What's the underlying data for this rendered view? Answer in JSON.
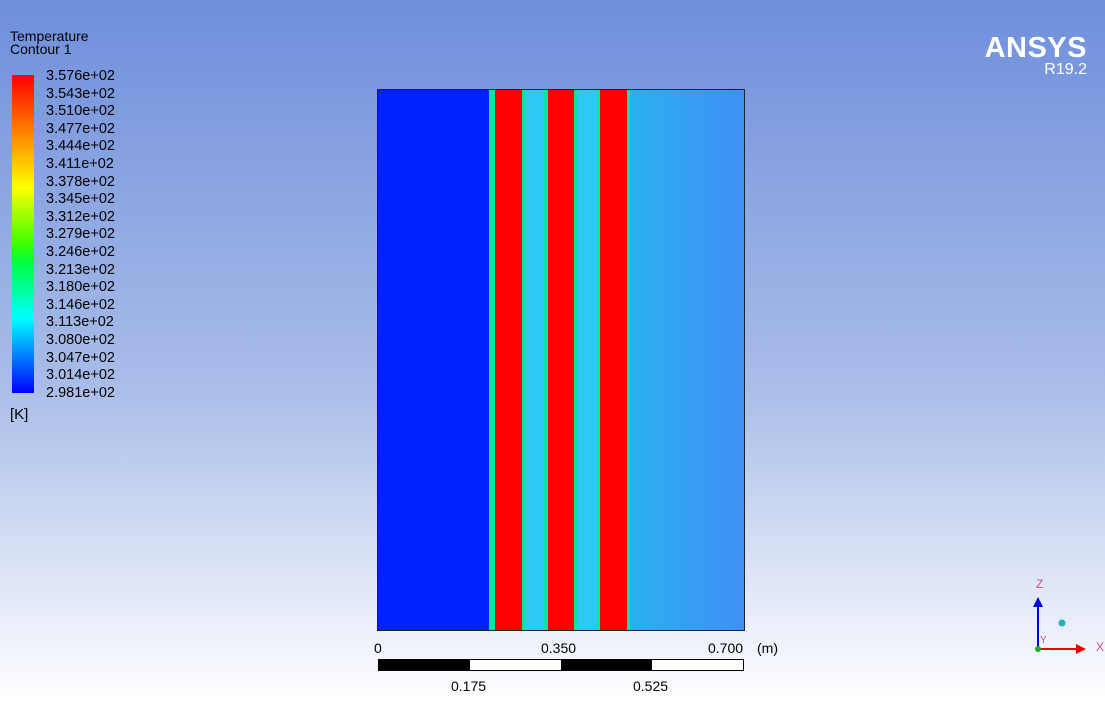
{
  "legend": {
    "title": "Temperature",
    "subtitle": "Contour 1",
    "levels": [
      "3.576e+02",
      "3.543e+02",
      "3.510e+02",
      "3.477e+02",
      "3.444e+02",
      "3.411e+02",
      "3.378e+02",
      "3.345e+02",
      "3.312e+02",
      "3.279e+02",
      "3.246e+02",
      "3.213e+02",
      "3.180e+02",
      "3.146e+02",
      "3.113e+02",
      "3.080e+02",
      "3.047e+02",
      "3.014e+02",
      "2.981e+02"
    ],
    "unit": "[K]",
    "colors": [
      "#ff0000",
      "#ff2a00",
      "#ff5500",
      "#ff8000",
      "#ffaa00",
      "#ffd400",
      "#ffff00",
      "#bfff00",
      "#80ff00",
      "#40ff00",
      "#00ff40",
      "#00ff80",
      "#00ffbf",
      "#00ffff",
      "#00bfff",
      "#0080ff",
      "#0040ff",
      "#0000ff"
    ]
  },
  "brand": {
    "name": "ANSYS",
    "version": "R19.2"
  },
  "axis": {
    "ticks_top": [
      "0",
      "0.350",
      "0.700"
    ],
    "unit": "(m)",
    "ticks_bottom": [
      "0.175",
      "0.525"
    ]
  },
  "triad": {
    "z": "Z",
    "y": "Y",
    "x": "X"
  },
  "colors": {
    "hot": "#ff0000",
    "cold": "#0022ff",
    "warm": "#39b8f0",
    "mid": "#00e8a0"
  }
}
